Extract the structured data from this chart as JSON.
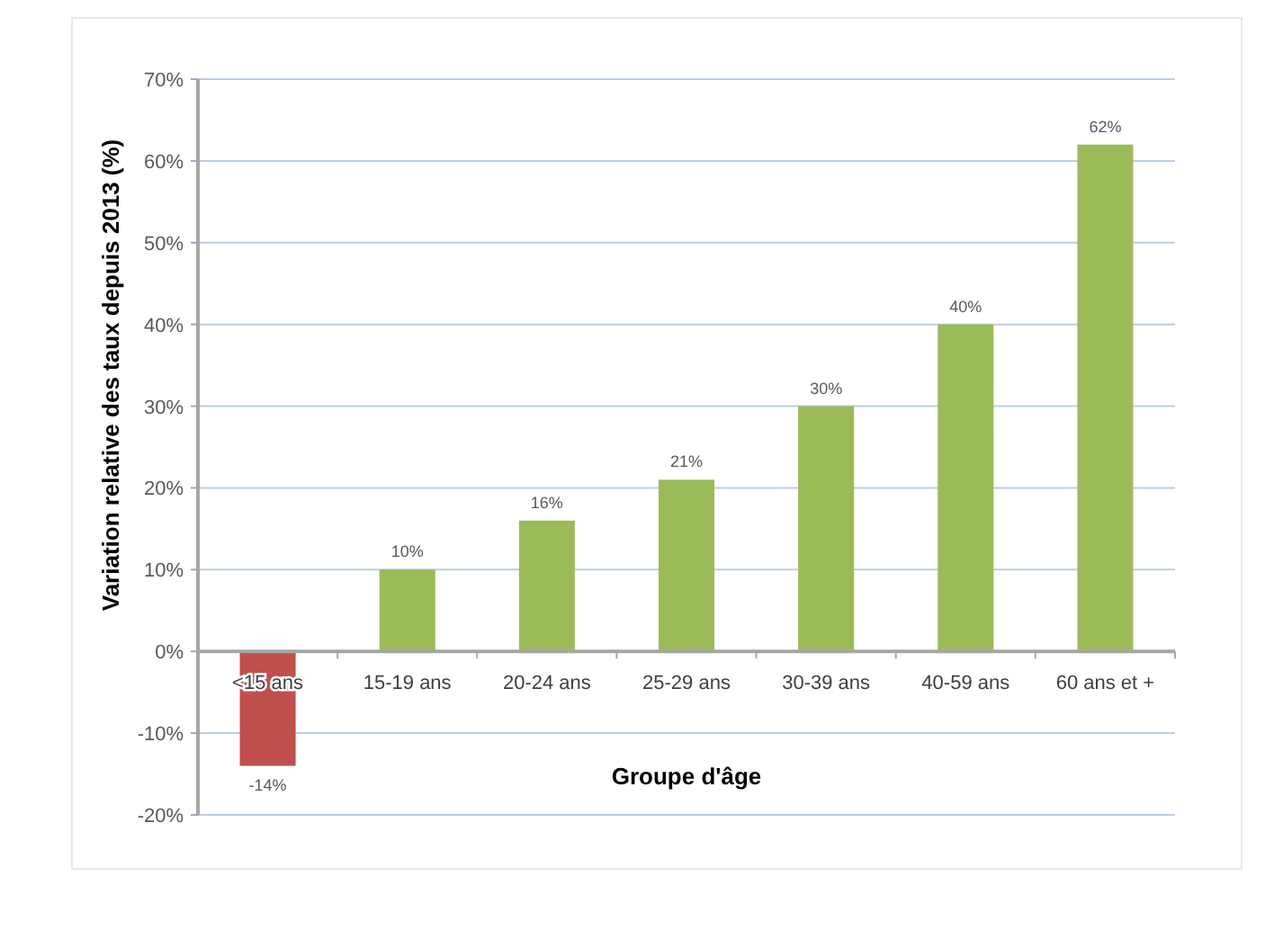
{
  "chart_data": {
    "type": "bar",
    "xlabel": "Groupe d'âge",
    "ylabel": "Variation relative des taux depuis 2013 (%)",
    "categories": [
      "<15 ans",
      "15-19 ans",
      "20-24 ans",
      "25-29 ans",
      "30-39 ans",
      "40-59 ans",
      "60 ans et +"
    ],
    "values": [
      -14,
      10,
      16,
      21,
      30,
      40,
      62
    ],
    "colors": [
      "#c0504d",
      "#9bbb59",
      "#9bbb59",
      "#9bbb59",
      "#9bbb59",
      "#9bbb59",
      "#9bbb59"
    ],
    "value_labels": [
      "-14%",
      "10%",
      "16%",
      "21%",
      "30%",
      "40%",
      "62%"
    ],
    "ylim": [
      -20,
      70
    ],
    "yticks": [
      {
        "value": -20,
        "label": "-20%"
      },
      {
        "value": -10,
        "label": "-10%"
      },
      {
        "value": 0,
        "label": "0%"
      },
      {
        "value": 10,
        "label": "10%"
      },
      {
        "value": 20,
        "label": "20%"
      },
      {
        "value": 30,
        "label": "30%"
      },
      {
        "value": 40,
        "label": "40%"
      },
      {
        "value": 50,
        "label": "50%"
      },
      {
        "value": 60,
        "label": "60%"
      },
      {
        "value": 70,
        "label": "70%"
      }
    ],
    "grid": "y"
  }
}
